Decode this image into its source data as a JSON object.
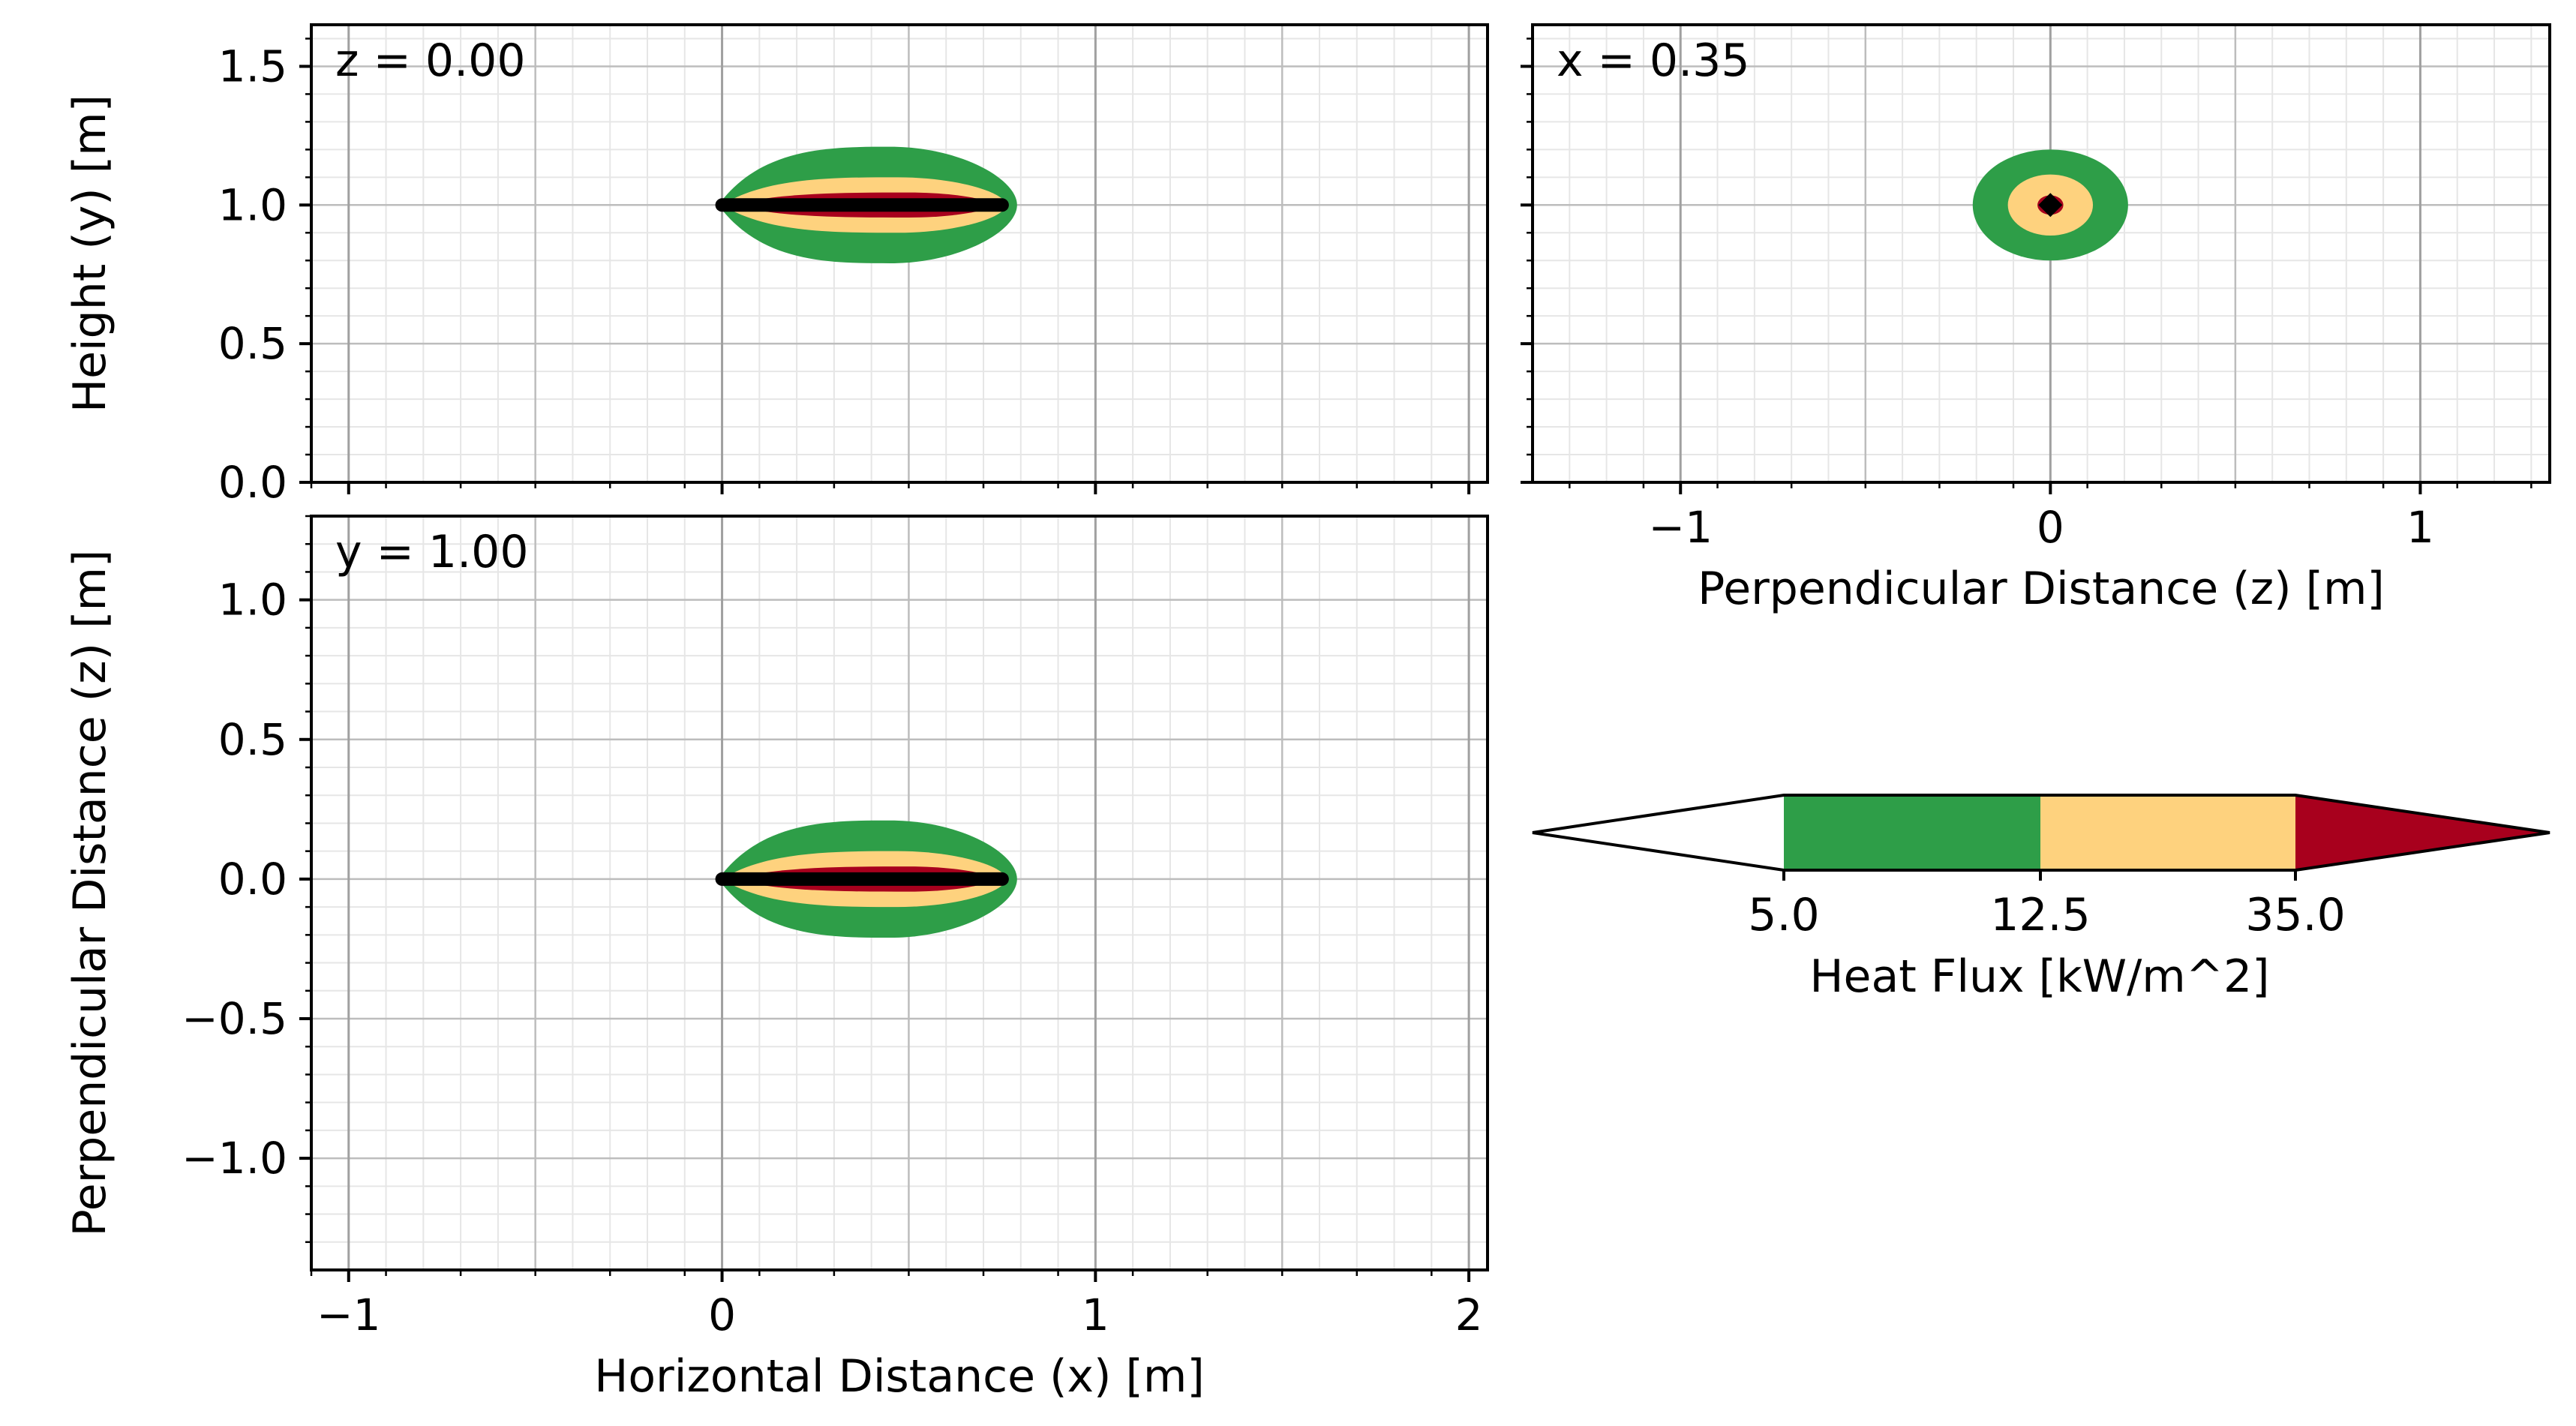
{
  "chart_data": [
    {
      "type": "heatmap",
      "panel_label": "z = 0.00",
      "xlabel": "",
      "ylabel": "Height (y) [m]",
      "xlim": [
        -1.1,
        2.05
      ],
      "ylim": [
        0.0,
        1.65
      ],
      "xticks": [
        -1,
        0,
        1,
        2
      ],
      "xtick_labels": [],
      "yticks": [
        0.0,
        0.5,
        1.0,
        1.5
      ],
      "ytick_labels": [
        "0.0",
        "0.5",
        "1.0",
        "1.5"
      ],
      "grid": true,
      "contours": [
        {
          "level": "5.0-12.5",
          "color": "#2e9e48",
          "center": [
            0.45,
            1.0
          ],
          "x_extent": [
            -0.01,
            0.79
          ],
          "half_height": 0.21,
          "peak_at": 0.45
        },
        {
          "level": "12.5-35.0",
          "color": "#fed27e",
          "center": [
            0.45,
            1.0
          ],
          "x_extent": [
            0.0,
            0.76
          ],
          "half_height": 0.1,
          "peak_at": 0.47
        },
        {
          "level": ">35.0",
          "color": "#a8001d",
          "center": [
            0.45,
            1.0
          ],
          "x_extent": [
            0.03,
            0.72
          ],
          "half_height": 0.045,
          "peak_at": 0.5
        }
      ],
      "source_line": {
        "x": [
          0.0,
          0.75
        ],
        "y": [
          1.0,
          1.0
        ],
        "color": "#000000"
      }
    },
    {
      "type": "heatmap",
      "panel_label": "x = 0.35",
      "xlabel": "Perpendicular Distance (z) [m]",
      "ylabel": "",
      "xlim": [
        -1.4,
        1.35
      ],
      "ylim": [
        0.0,
        1.65
      ],
      "xticks": [
        -1,
        0,
        1
      ],
      "xtick_labels": [
        "−1",
        "0",
        "1"
      ],
      "yticks": [
        0.0,
        0.5,
        1.0,
        1.5
      ],
      "ytick_labels": [],
      "grid": true,
      "contours": [
        {
          "level": "5.0-12.5",
          "color": "#2e9e48",
          "center": [
            0.0,
            1.0
          ],
          "rx": 0.21,
          "ry": 0.2
        },
        {
          "level": "12.5-35.0",
          "color": "#fed27e",
          "center": [
            0.0,
            1.0
          ],
          "rx": 0.115,
          "ry": 0.11
        },
        {
          "level": ">35.0",
          "color": "#a8001d",
          "center": [
            0.0,
            1.0
          ],
          "rx": 0.035,
          "ry": 0.035
        }
      ],
      "source_point": {
        "x": 0.0,
        "y": 1.0,
        "color": "#000000"
      }
    },
    {
      "type": "heatmap",
      "panel_label": "y = 1.00",
      "xlabel": "Horizontal Distance (x) [m]",
      "ylabel": "Perpendicular Distance (z) [m]",
      "xlim": [
        -1.1,
        2.05
      ],
      "ylim": [
        -1.4,
        1.3
      ],
      "xticks": [
        -1,
        0,
        1,
        2
      ],
      "xtick_labels": [
        "−1",
        "0",
        "1",
        "2"
      ],
      "yticks": [
        -1.0,
        -0.5,
        0.0,
        0.5,
        1.0
      ],
      "ytick_labels": [
        "−1.0",
        "−0.5",
        "0.0",
        "0.5",
        "1.0"
      ],
      "grid": true,
      "contours": [
        {
          "level": "5.0-12.5",
          "color": "#2e9e48",
          "center": [
            0.45,
            0.0
          ],
          "x_extent": [
            -0.01,
            0.79
          ],
          "half_height": 0.21,
          "peak_at": 0.45
        },
        {
          "level": "12.5-35.0",
          "color": "#fed27e",
          "center": [
            0.45,
            0.0
          ],
          "x_extent": [
            0.0,
            0.76
          ],
          "half_height": 0.1,
          "peak_at": 0.47
        },
        {
          "level": ">35.0",
          "color": "#a8001d",
          "center": [
            0.45,
            0.0
          ],
          "x_extent": [
            0.03,
            0.72
          ],
          "half_height": 0.045,
          "peak_at": 0.5
        }
      ],
      "source_line": {
        "x": [
          0.0,
          0.75
        ],
        "y": [
          0.0,
          0.0
        ],
        "color": "#000000"
      }
    }
  ],
  "colorbar": {
    "label": "Heat Flux [kW/m^2]",
    "tick_labels": [
      "5.0",
      "12.5",
      "35.0"
    ],
    "segments": [
      {
        "range": "<5.0",
        "color": "#ffffff"
      },
      {
        "range": "5.0-12.5",
        "color": "#2e9e48"
      },
      {
        "range": "12.5-35.0",
        "color": "#fed27e"
      },
      {
        "range": ">35.0",
        "color": "#a8001d"
      }
    ]
  }
}
